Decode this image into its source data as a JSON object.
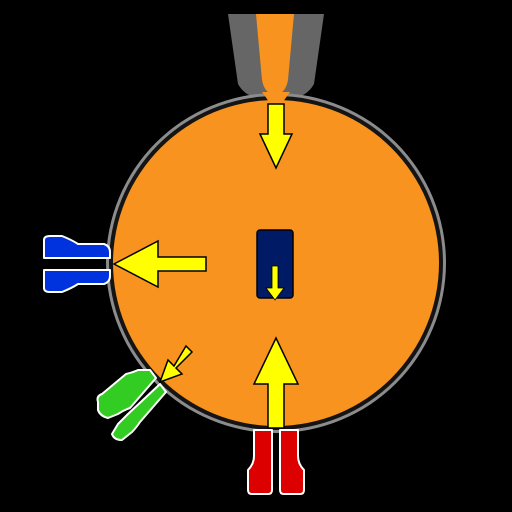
{
  "colors": {
    "background": "#000000",
    "cell_fill": "#f7931e",
    "membrane_outer": "#8c8c8c",
    "membrane_inner": "#141414",
    "pipette": "#666666",
    "arrow": "#ffff00",
    "nucleus": "#001a66",
    "channel_blue": "#0033dd",
    "channel_green": "#33cc22",
    "channel_red": "#dd0000",
    "outline": "#ffffff"
  },
  "icons": {
    "pipette": "micropipette",
    "cell": "cell-body",
    "nucleus": "nucleus",
    "channels": [
      "ion-channel-blue",
      "ion-channel-green",
      "ion-channel-red"
    ],
    "arrows": [
      "arrow-down",
      "arrow-left",
      "arrow-up",
      "arrow-diagonal",
      "arrow-nucleus-down"
    ]
  }
}
